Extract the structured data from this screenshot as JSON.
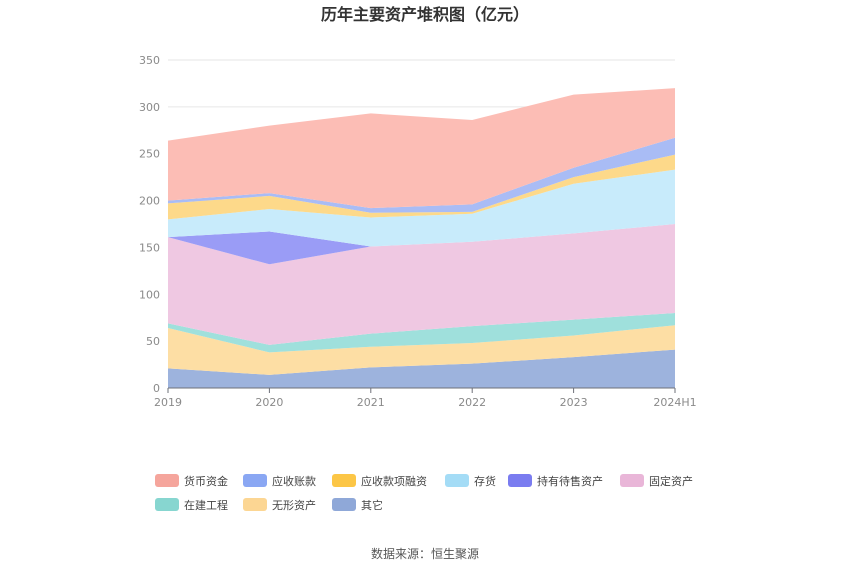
{
  "chart_data": {
    "type": "area",
    "stacked": true,
    "title": "历年主要资产堆积图（亿元）",
    "categories": [
      "2019",
      "2020",
      "2021",
      "2022",
      "2023",
      "2024H1"
    ],
    "y_ticks": [
      "0",
      "50",
      "100",
      "150",
      "200",
      "250",
      "300",
      "350"
    ],
    "ylim": [
      0,
      350
    ],
    "series": [
      {
        "name": "其它",
        "color": "#9db3dd",
        "values": [
          21,
          14,
          22,
          26,
          33,
          41
        ]
      },
      {
        "name": "无形资产",
        "color": "#fddea4",
        "values": [
          43,
          24,
          22,
          22,
          23,
          26
        ]
      },
      {
        "name": "在建工程",
        "color": "#9fe0dc",
        "values": [
          5,
          8,
          14,
          18,
          17,
          13
        ]
      },
      {
        "name": "固定资产",
        "color": "#efc8e2",
        "values": [
          92,
          86,
          93,
          90,
          92,
          95
        ]
      },
      {
        "name": "持有待售资产",
        "color": "#9a9cf6",
        "values": [
          0,
          35,
          0,
          0,
          0,
          0
        ]
      },
      {
        "name": "存货",
        "color": "#c8ebfb",
        "values": [
          19,
          24,
          31,
          30,
          53,
          58
        ]
      },
      {
        "name": "应收款项融资",
        "color": "#fdd98a",
        "values": [
          17,
          14,
          5,
          2,
          7,
          16
        ]
      },
      {
        "name": "应收账款",
        "color": "#a9bcf5",
        "values": [
          3,
          3,
          5,
          8,
          10,
          18
        ]
      },
      {
        "name": "货币资金",
        "color": "#fcbdb5",
        "values": [
          64,
          72,
          101,
          90,
          78,
          53
        ]
      }
    ],
    "legend": [
      {
        "name": "货币资金",
        "color": "#f5a59c"
      },
      {
        "name": "应收账款",
        "color": "#8aa7f3"
      },
      {
        "name": "应收款项融资",
        "color": "#fcc646"
      },
      {
        "name": "存货",
        "color": "#a4dcf6"
      },
      {
        "name": "持有待售资产",
        "color": "#7a7cf0"
      },
      {
        "name": "固定资产",
        "color": "#e9b6d8"
      },
      {
        "name": "在建工程",
        "color": "#87d6d0"
      },
      {
        "name": "无形资产",
        "color": "#fcd693"
      },
      {
        "name": "其它",
        "color": "#8fa8d8"
      }
    ],
    "legend_position": "bottom"
  },
  "source": "数据来源：恒生聚源"
}
